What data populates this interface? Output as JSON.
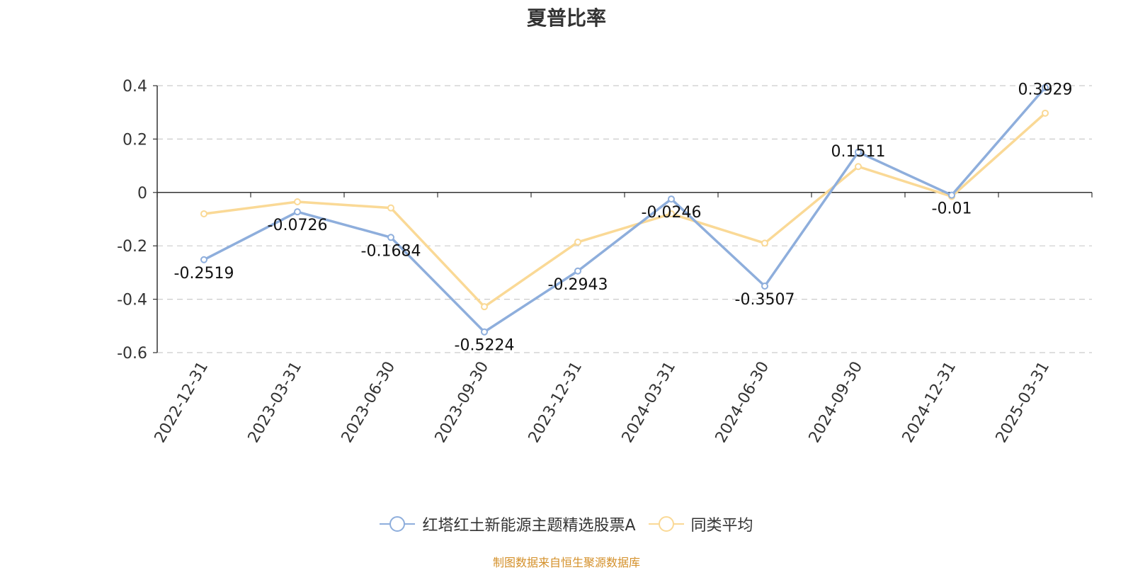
{
  "chart_data": {
    "type": "line",
    "title": "夏普比率",
    "categories": [
      "2022-12-31",
      "2023-03-31",
      "2023-06-30",
      "2023-09-30",
      "2023-12-31",
      "2024-03-31",
      "2024-06-30",
      "2024-09-30",
      "2024-12-31",
      "2025-03-31"
    ],
    "series": [
      {
        "name": "红塔红土新能源主题精选股票A",
        "color": "#8eaedc",
        "values": [
          -0.2519,
          -0.0726,
          -0.1684,
          -0.5224,
          -0.2943,
          -0.0246,
          -0.3507,
          0.1511,
          -0.01,
          0.3929
        ],
        "labels": [
          "-0.2519",
          "-0.0726",
          "-0.1684",
          "-0.5224",
          "-0.2943",
          "-0.0246",
          "-0.3507",
          "0.1511",
          "-0.01",
          "0.3929"
        ]
      },
      {
        "name": "同类平均",
        "color": "#fad996",
        "values": [
          -0.08,
          -0.035,
          -0.058,
          -0.428,
          -0.186,
          -0.08,
          -0.19,
          0.097,
          -0.015,
          0.297
        ]
      }
    ],
    "ylim": [
      -0.6,
      0.4
    ],
    "yticks": [
      0.4,
      0.2,
      0,
      -0.2,
      -0.4,
      -0.6
    ],
    "ytick_labels": [
      "0.4",
      "0.2",
      "0",
      "-0.2",
      "-0.4",
      "-0.6"
    ],
    "grid": true,
    "legend_position": "bottom-center"
  },
  "source_note": "制图数据来自恒生聚源数据库"
}
